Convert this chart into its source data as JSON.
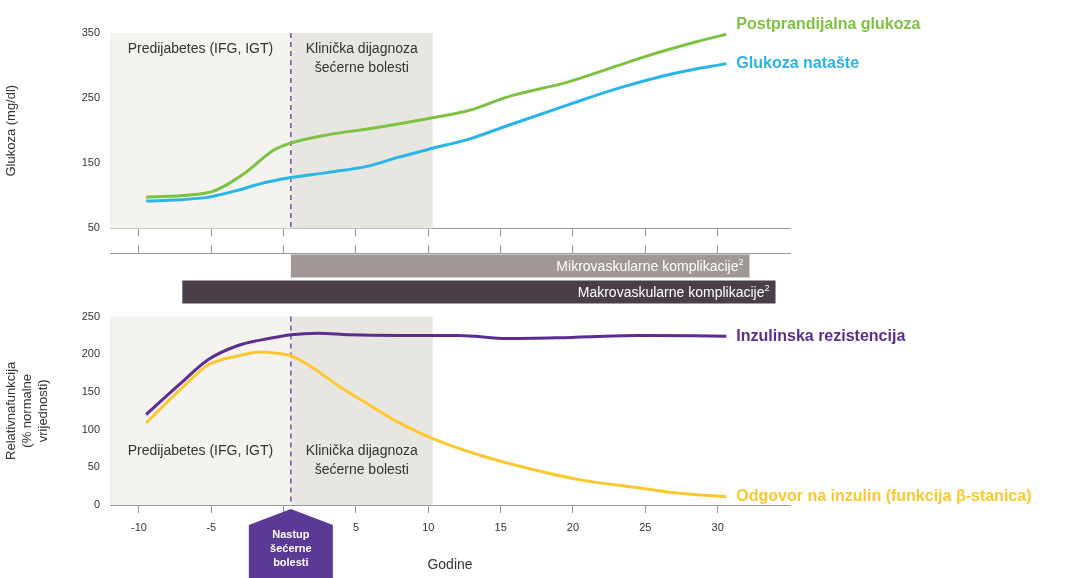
{
  "chart_data": [
    {
      "type": "line",
      "ylabel": "Glukoza (mg/dl)",
      "xlim": [
        -12,
        35
      ],
      "xticks": [
        {
          "value": -10,
          "label": null
        },
        {
          "value": -5,
          "label": null
        },
        {
          "value": 0,
          "label": null
        },
        {
          "value": 5,
          "label": null
        },
        {
          "value": 10,
          "label": null
        },
        {
          "value": 15,
          "label": null
        },
        {
          "value": 20,
          "label": null
        },
        {
          "value": 25,
          "label": null
        },
        {
          "value": 30,
          "label": null
        }
      ],
      "ylim": [
        50,
        350
      ],
      "yticks": [
        50,
        150,
        250,
        350
      ],
      "tick_labels": "y",
      "legend": false,
      "grid": false,
      "series": [
        {
          "name": "Postprandijalna glukoza",
          "color": "#7dc242",
          "x": [
            -9.5,
            -5.2,
            -2.8,
            -0.7,
            0.5,
            3.1,
            5.9,
            10.3,
            12.8,
            15.5,
            19.7,
            23.1,
            25.9,
            28.6,
            30.6
          ],
          "values": [
            98,
            105,
            133,
            170,
            181,
            194,
            203,
            220,
            231,
            252,
            275,
            300,
            320,
            337,
            348
          ]
        },
        {
          "name": "Glukoza natašte",
          "color": "#29b5e8",
          "x": [
            -9.5,
            -7.2,
            -5.2,
            -3.1,
            -1.7,
            0.5,
            3.1,
            5.9,
            7.9,
            10.3,
            12.8,
            15.5,
            19.7,
            23.1,
            27.2,
            30.6
          ],
          "values": [
            92,
            94,
            98,
            109,
            118,
            128,
            136,
            146,
            159,
            173,
            187,
            208,
            240,
            265,
            289,
            303
          ]
        }
      ],
      "bands": [
        {
          "axis": "x",
          "from": -12,
          "to": 0.5,
          "label": "Predijabetes (IFG, IGT)",
          "color": "#f4f3f0"
        },
        {
          "axis": "x",
          "from": 0.5,
          "to": 10.3,
          "label": "Klinička dijagnoza\nšećerne bolesti",
          "color": "#e8e6e0"
        }
      ],
      "ref_lines": [
        {
          "axis": "x",
          "value": 0.5,
          "color": "#5b3a96",
          "line_style": "dashed"
        }
      ]
    },
    {
      "type": "bar",
      "orientation": "horizontal",
      "categories": [
        "Mikrovaskularne komplikacije$^{2}$",
        "Makrovaskularne komplikacije$^{2}$"
      ],
      "base": [
        0.5,
        -7
      ],
      "values": [
        31.7,
        41
      ],
      "colors": [
        "#a09896",
        "#4a3f48"
      ],
      "xlim": [
        -12,
        35
      ],
      "xticks": [
        {
          "value": -10,
          "label": null
        },
        {
          "value": -5,
          "label": null
        },
        {
          "value": 0,
          "label": null
        },
        {
          "value": 5,
          "label": null
        },
        {
          "value": 10,
          "label": null
        },
        {
          "value": 15,
          "label": null
        },
        {
          "value": 20,
          "label": null
        },
        {
          "value": 25,
          "label": null
        },
        {
          "value": 30,
          "label": null
        }
      ],
      "tick_labels": false,
      "legend": false
    },
    {
      "type": "line",
      "ylabel": "Relativnafunkcija\n(% normalne\nvrijednosti)",
      "xlabel": "Godine",
      "xlim": [
        -12,
        35
      ],
      "xticks": [
        -10,
        -5,
        {
          "value": 0,
          "label": null
        },
        5,
        10,
        15,
        20,
        25,
        30
      ],
      "ylim": [
        0,
        250
      ],
      "yticks": [
        0,
        50,
        100,
        150,
        200,
        250
      ],
      "legend": false,
      "grid": false,
      "series": [
        {
          "name": "Inzulinska rezistencija",
          "color": "#5b2d90",
          "x": [
            -9.5,
            -7.2,
            -5.2,
            -3.1,
            -1.0,
            0.5,
            2.4,
            4.5,
            7.9,
            12.1,
            15.5,
            19,
            24.5,
            30.6
          ],
          "values": [
            120,
            160,
            193,
            212,
            221,
            226,
            228,
            226,
            225,
            225,
            221,
            222,
            225,
            224
          ]
        },
        {
          "name": "Odgovor na inzulin (funkcija β-stanica)",
          "color": "#fdc82f",
          "x": [
            -9.5,
            -7.2,
            -5.2,
            -3.1,
            -1.7,
            -0.3,
            0.5,
            1.7,
            3.8,
            5.9,
            7.9,
            10.3,
            13.4,
            16.2,
            20.3,
            24.5,
            27.2,
            30.6
          ],
          "values": [
            109,
            152,
            186,
            198,
            203,
            201,
            198,
            186,
            158,
            133,
            110,
            88,
            67,
            52,
            34,
            23,
            16,
            11
          ]
        }
      ],
      "bands": [
        {
          "axis": "x",
          "from": -12,
          "to": 0.5,
          "label": "Predijabetes (IFG, IGT)",
          "color": "#f4f3f0"
        },
        {
          "axis": "x",
          "from": 0.5,
          "to": 10.3,
          "label": "Klinička dijagnoza\nšećerne bolesti",
          "color": "#e8e6e0"
        }
      ],
      "ref_lines": [
        {
          "axis": "x",
          "value": 0.5,
          "label": "Nastup šećerne bolesti",
          "color": "#5b3a96",
          "line_style": "dashed"
        }
      ]
    }
  ]
}
